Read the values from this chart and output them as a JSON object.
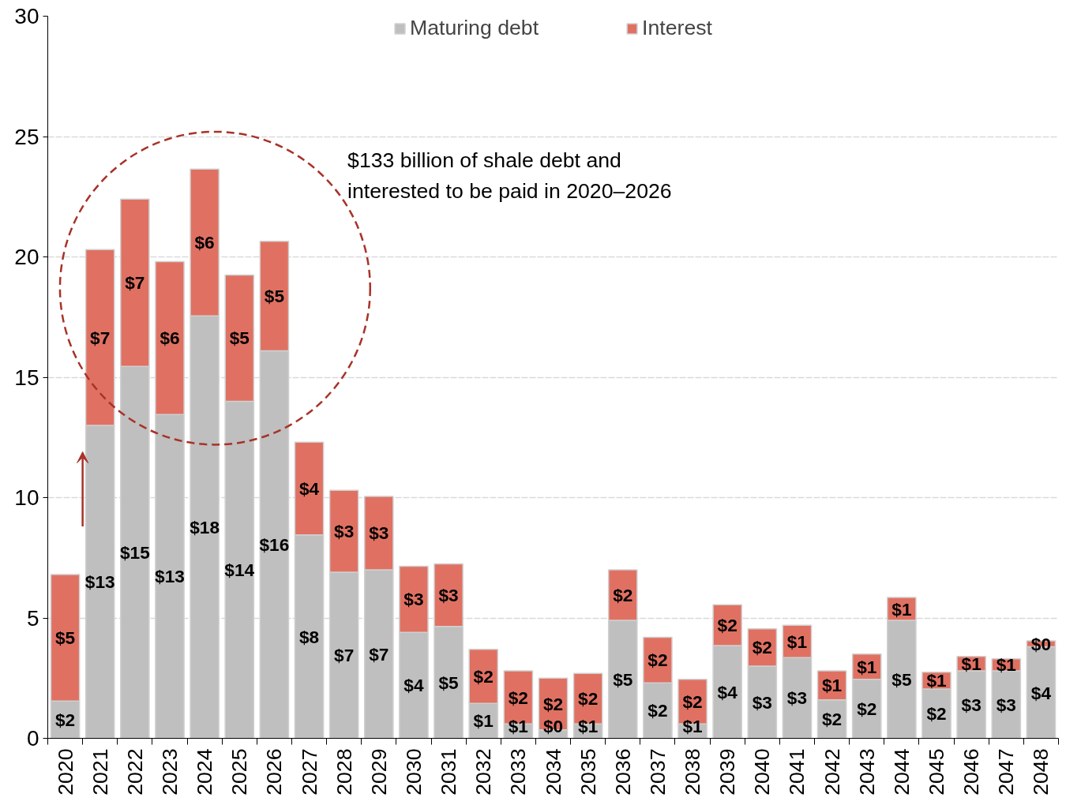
{
  "chart_data": {
    "type": "bar",
    "stacked": true,
    "categories": [
      "2020",
      "2021",
      "2022",
      "2023",
      "2024",
      "2025",
      "2026",
      "2027",
      "2028",
      "2029",
      "2030",
      "2031",
      "2032",
      "2033",
      "2034",
      "2035",
      "2036",
      "2037",
      "2038",
      "2039",
      "2040",
      "2041",
      "2042",
      "2043",
      "2044",
      "2045",
      "2046",
      "2047",
      "2048"
    ],
    "series": [
      {
        "name": "Maturing debt",
        "color": "#bfbfbf",
        "values": [
          1.55,
          13.0,
          15.45,
          13.45,
          17.55,
          14.0,
          16.1,
          8.45,
          6.9,
          7.0,
          4.4,
          4.65,
          1.45,
          0.6,
          0.35,
          0.6,
          4.9,
          2.3,
          0.6,
          3.85,
          3.0,
          3.35,
          1.6,
          2.45,
          4.9,
          2.05,
          2.8,
          2.8,
          3.8
        ],
        "value_labels": [
          "$2",
          "$13",
          "$15",
          "$13",
          "$18",
          "$14",
          "$16",
          "$8",
          "$7",
          "$7",
          "$4",
          "$5",
          "$1",
          "$1",
          "$0",
          "$1",
          "$5",
          "$2",
          "$1",
          "$4",
          "$3",
          "$3",
          "$2",
          "$2",
          "$5",
          "$2",
          "$3",
          "$3",
          "$4"
        ]
      },
      {
        "name": "Interest",
        "color": "#e07162",
        "values": [
          5.25,
          7.3,
          6.95,
          6.35,
          6.1,
          5.25,
          4.55,
          3.85,
          3.4,
          3.05,
          2.75,
          2.6,
          2.25,
          2.2,
          2.15,
          2.1,
          2.1,
          1.9,
          1.85,
          1.7,
          1.55,
          1.35,
          1.2,
          1.05,
          0.95,
          0.7,
          0.6,
          0.5,
          0.25
        ],
        "value_labels": [
          "$5",
          "$7",
          "$7",
          "$6",
          "$6",
          "$5",
          "$5",
          "$4",
          "$3",
          "$3",
          "$3",
          "$3",
          "$2",
          "$2",
          "$2",
          "$2",
          "$2",
          "$2",
          "$2",
          "$2",
          "$2",
          "$1",
          "$1",
          "$1",
          "$1",
          "$1",
          "$1",
          "$1",
          "$0"
        ]
      }
    ],
    "ylim": [
      0,
      30
    ],
    "yticks": [
      0,
      5,
      10,
      15,
      20,
      25,
      30
    ],
    "grid": "y",
    "legend": "top",
    "annotations": [
      "$133 billion of shale debt and\ninterested to be paid in 2020–2026"
    ]
  }
}
